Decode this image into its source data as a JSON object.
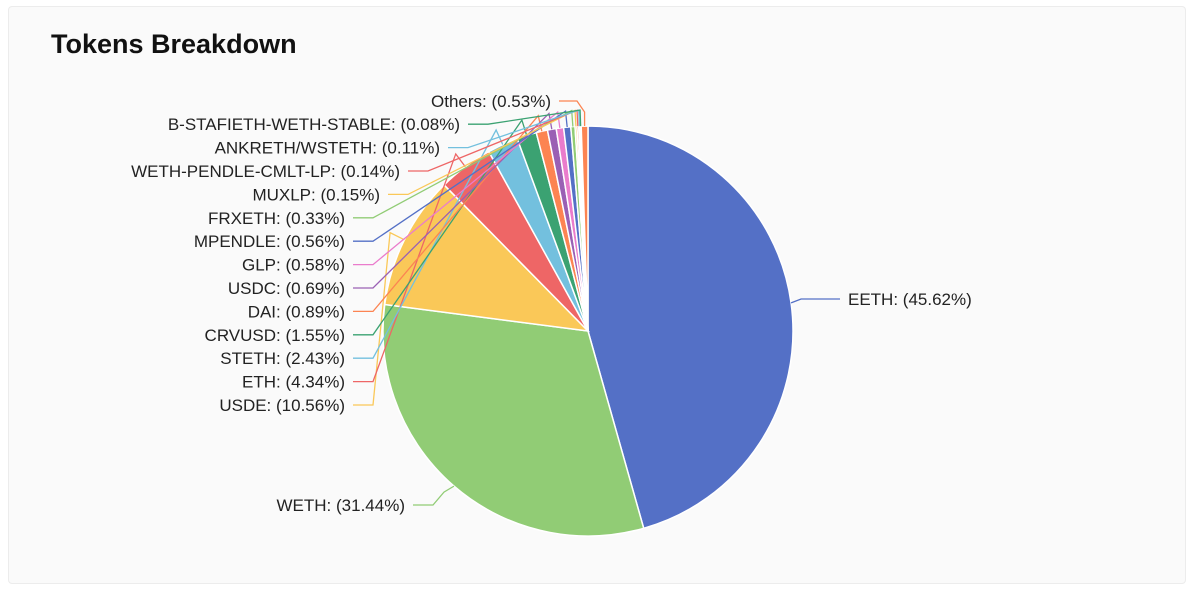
{
  "title": "Tokens Breakdown",
  "chart_data": {
    "type": "pie",
    "title": "Tokens Breakdown",
    "slices": [
      {
        "label": "EETH: (45.62%)",
        "value": 45.62,
        "color": "#5470c6"
      },
      {
        "label": "WETH: (31.44%)",
        "value": 31.44,
        "color": "#91cc75"
      },
      {
        "label": "USDE: (10.56%)",
        "value": 10.56,
        "color": "#fac858"
      },
      {
        "label": "ETH: (4.34%)",
        "value": 4.34,
        "color": "#ee6666"
      },
      {
        "label": "STETH: (2.43%)",
        "value": 2.43,
        "color": "#73c0de"
      },
      {
        "label": "CRVUSD: (1.55%)",
        "value": 1.55,
        "color": "#3ba272"
      },
      {
        "label": "DAI: (0.89%)",
        "value": 0.89,
        "color": "#fc8452"
      },
      {
        "label": "USDC: (0.69%)",
        "value": 0.69,
        "color": "#9a60b4"
      },
      {
        "label": "GLP: (0.58%)",
        "value": 0.58,
        "color": "#ea7ccc"
      },
      {
        "label": "MPENDLE: (0.56%)",
        "value": 0.56,
        "color": "#5470c6"
      },
      {
        "label": "FRXETH: (0.33%)",
        "value": 0.33,
        "color": "#91cc75"
      },
      {
        "label": "MUXLP: (0.15%)",
        "value": 0.15,
        "color": "#fac858"
      },
      {
        "label": "WETH-PENDLE-CMLT-LP: (0.14%)",
        "value": 0.14,
        "color": "#ee6666"
      },
      {
        "label": "ANKRETH/WSTETH: (0.11%)",
        "value": 0.11,
        "color": "#73c0de"
      },
      {
        "label": "B-STAFIETH-WETH-STABLE: (0.08%)",
        "value": 0.08,
        "color": "#3ba272"
      },
      {
        "label": "Others: (0.53%)",
        "value": 0.53,
        "color": "#fc8452"
      }
    ]
  }
}
